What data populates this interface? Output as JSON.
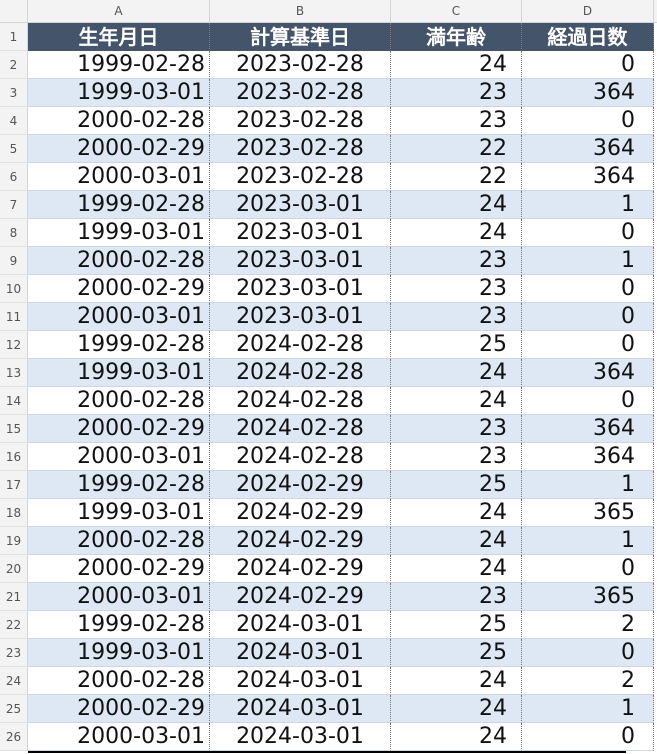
{
  "columns": [
    "A",
    "B",
    "C",
    "D"
  ],
  "headers": [
    "生年月日",
    "計算基準日",
    "満年齢",
    "経過日数"
  ],
  "header_color": "#44546a",
  "band_color": "#dde8f4",
  "rows": [
    {
      "num": "2",
      "birth": "1999-02-28",
      "base": "2023-02-28",
      "age": "24",
      "days": "0"
    },
    {
      "num": "3",
      "birth": "1999-03-01",
      "base": "2023-02-28",
      "age": "23",
      "days": "364"
    },
    {
      "num": "4",
      "birth": "2000-02-28",
      "base": "2023-02-28",
      "age": "23",
      "days": "0"
    },
    {
      "num": "5",
      "birth": "2000-02-29",
      "base": "2023-02-28",
      "age": "22",
      "days": "364"
    },
    {
      "num": "6",
      "birth": "2000-03-01",
      "base": "2023-02-28",
      "age": "22",
      "days": "364"
    },
    {
      "num": "7",
      "birth": "1999-02-28",
      "base": "2023-03-01",
      "age": "24",
      "days": "1"
    },
    {
      "num": "8",
      "birth": "1999-03-01",
      "base": "2023-03-01",
      "age": "24",
      "days": "0"
    },
    {
      "num": "9",
      "birth": "2000-02-28",
      "base": "2023-03-01",
      "age": "23",
      "days": "1"
    },
    {
      "num": "10",
      "birth": "2000-02-29",
      "base": "2023-03-01",
      "age": "23",
      "days": "0"
    },
    {
      "num": "11",
      "birth": "2000-03-01",
      "base": "2023-03-01",
      "age": "23",
      "days": "0"
    },
    {
      "num": "12",
      "birth": "1999-02-28",
      "base": "2024-02-28",
      "age": "25",
      "days": "0"
    },
    {
      "num": "13",
      "birth": "1999-03-01",
      "base": "2024-02-28",
      "age": "24",
      "days": "364"
    },
    {
      "num": "14",
      "birth": "2000-02-28",
      "base": "2024-02-28",
      "age": "24",
      "days": "0"
    },
    {
      "num": "15",
      "birth": "2000-02-29",
      "base": "2024-02-28",
      "age": "23",
      "days": "364"
    },
    {
      "num": "16",
      "birth": "2000-03-01",
      "base": "2024-02-28",
      "age": "23",
      "days": "364"
    },
    {
      "num": "17",
      "birth": "1999-02-28",
      "base": "2024-02-29",
      "age": "25",
      "days": "1"
    },
    {
      "num": "18",
      "birth": "1999-03-01",
      "base": "2024-02-29",
      "age": "24",
      "days": "365"
    },
    {
      "num": "19",
      "birth": "2000-02-28",
      "base": "2024-02-29",
      "age": "24",
      "days": "1"
    },
    {
      "num": "20",
      "birth": "2000-02-29",
      "base": "2024-02-29",
      "age": "24",
      "days": "0"
    },
    {
      "num": "21",
      "birth": "2000-03-01",
      "base": "2024-02-29",
      "age": "23",
      "days": "365"
    },
    {
      "num": "22",
      "birth": "1999-02-28",
      "base": "2024-03-01",
      "age": "25",
      "days": "2"
    },
    {
      "num": "23",
      "birth": "1999-03-01",
      "base": "2024-03-01",
      "age": "25",
      "days": "0"
    },
    {
      "num": "24",
      "birth": "2000-02-28",
      "base": "2024-03-01",
      "age": "24",
      "days": "2"
    },
    {
      "num": "25",
      "birth": "2000-02-29",
      "base": "2024-03-01",
      "age": "24",
      "days": "1"
    },
    {
      "num": "26",
      "birth": "2000-03-01",
      "base": "2024-03-01",
      "age": "24",
      "days": "0"
    }
  ],
  "header_row_num": "1"
}
